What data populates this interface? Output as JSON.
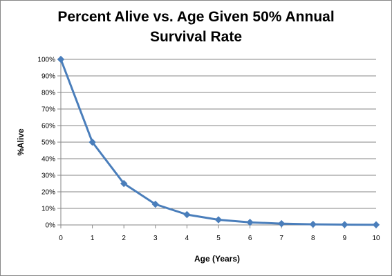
{
  "chart_data": {
    "type": "line",
    "title_lines": [
      "Percent Alive vs. Age Given 50% Annual",
      "Survival Rate"
    ],
    "xlabel": "Age (Years)",
    "ylabel": "%Alive",
    "x": [
      0,
      1,
      2,
      3,
      4,
      5,
      6,
      7,
      8,
      9,
      10
    ],
    "series": [
      {
        "values": [
          100,
          50,
          25,
          12.5,
          6.25,
          3.125,
          1.5625,
          0.78,
          0.39,
          0.2,
          0.1
        ]
      }
    ],
    "xlim": [
      0,
      10
    ],
    "ylim": [
      0,
      100
    ],
    "x_ticks": [
      "0",
      "1",
      "2",
      "3",
      "4",
      "5",
      "6",
      "7",
      "8",
      "9",
      "10"
    ],
    "y_ticks": [
      "0%",
      "10%",
      "20%",
      "30%",
      "40%",
      "50%",
      "60%",
      "70%",
      "80%",
      "90%",
      "100%"
    ],
    "grid": "horizontal",
    "legend": "none",
    "line_color": "#4A7EBB",
    "marker": "diamond"
  }
}
